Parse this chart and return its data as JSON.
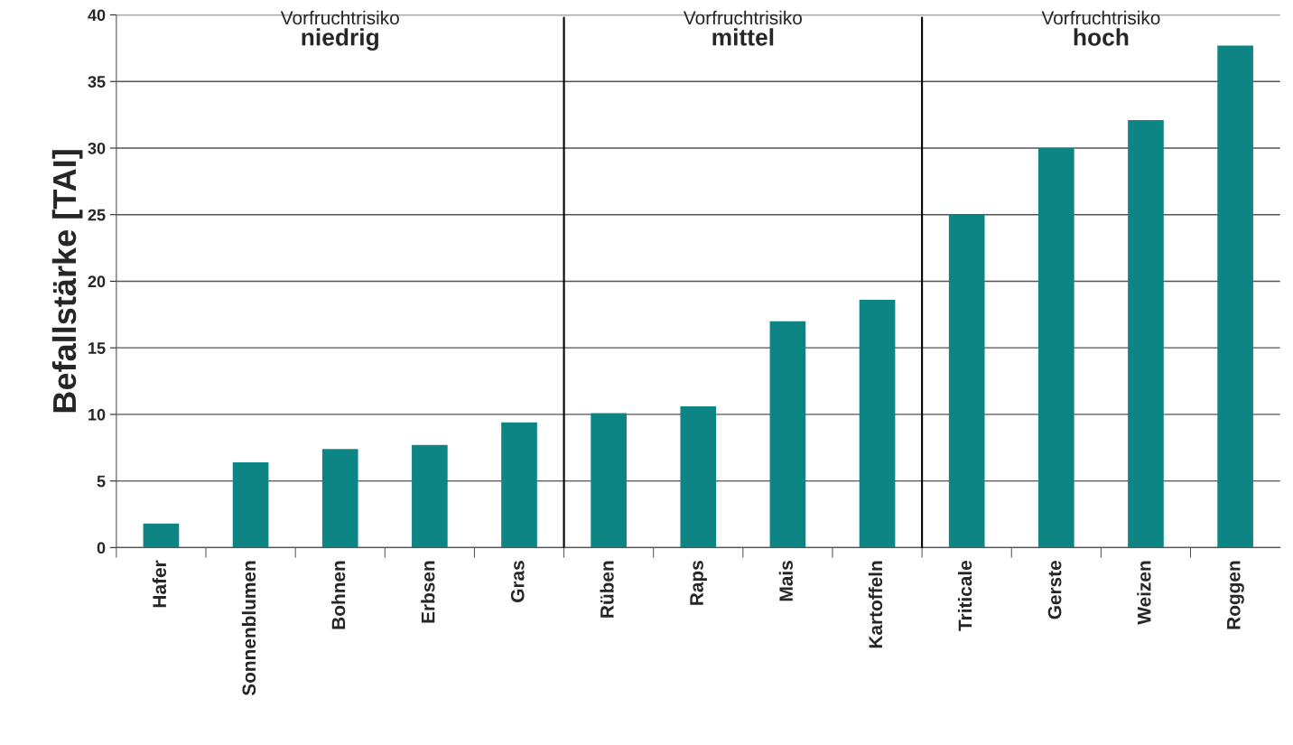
{
  "chart_data": {
    "type": "bar",
    "ylabel": "Befallstärke [TAI]",
    "categories": [
      "Hafer",
      "Sonnenblumen",
      "Bohnen",
      "Erbsen",
      "Gras",
      "Rüben",
      "Raps",
      "Mais",
      "Kartoffeln",
      "Triticale",
      "Gerste",
      "Weizen",
      "Roggen"
    ],
    "values": [
      1.8,
      6.4,
      7.4,
      7.7,
      9.4,
      10.1,
      10.6,
      17.0,
      18.6,
      25.0,
      30.0,
      32.1,
      37.7
    ],
    "color": "#0e8585",
    "ylim": [
      0,
      40
    ],
    "yticks": [
      0,
      5,
      10,
      15,
      20,
      25,
      30,
      35,
      40
    ],
    "grid": "y",
    "annotations": [
      "Vorfruchtrisiko\nniedrig",
      "Vorfruchtrisiko\nmittel",
      "Vorfruchtrisiko\nhoch"
    ]
  }
}
